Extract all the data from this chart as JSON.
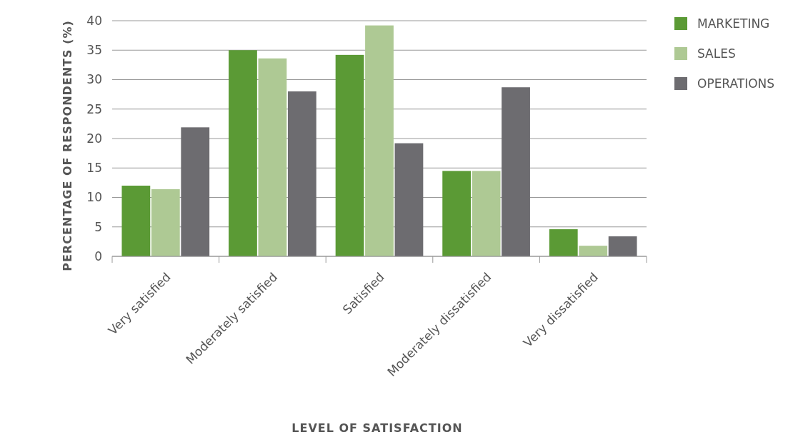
{
  "chart_data": {
    "type": "bar",
    "xlabel": "LEVEL OF SATISFACTION",
    "ylabel": "PERCENTAGE OF RESPONDENTS (%)",
    "categories": [
      "Very satisfied",
      "Moderately satisfied",
      "Satisfied",
      "Moderately dissatisfied",
      "Very dissatisfied"
    ],
    "series": [
      {
        "name": "MARKETING",
        "color": "#5b9a35",
        "values": [
          12,
          35,
          34.2,
          14.5,
          4.6
        ]
      },
      {
        "name": "SALES",
        "color": "#aec994",
        "values": [
          11.4,
          33.6,
          39.2,
          14.5,
          1.8
        ]
      },
      {
        "name": "OPERATIONS",
        "color": "#6d6c70",
        "values": [
          21.9,
          28,
          19.2,
          28.7,
          3.4
        ]
      }
    ],
    "ylim": [
      0,
      40
    ],
    "yticks": [
      0,
      5,
      10,
      15,
      20,
      25,
      30,
      35,
      40
    ],
    "grid": "y",
    "legend": "right"
  }
}
